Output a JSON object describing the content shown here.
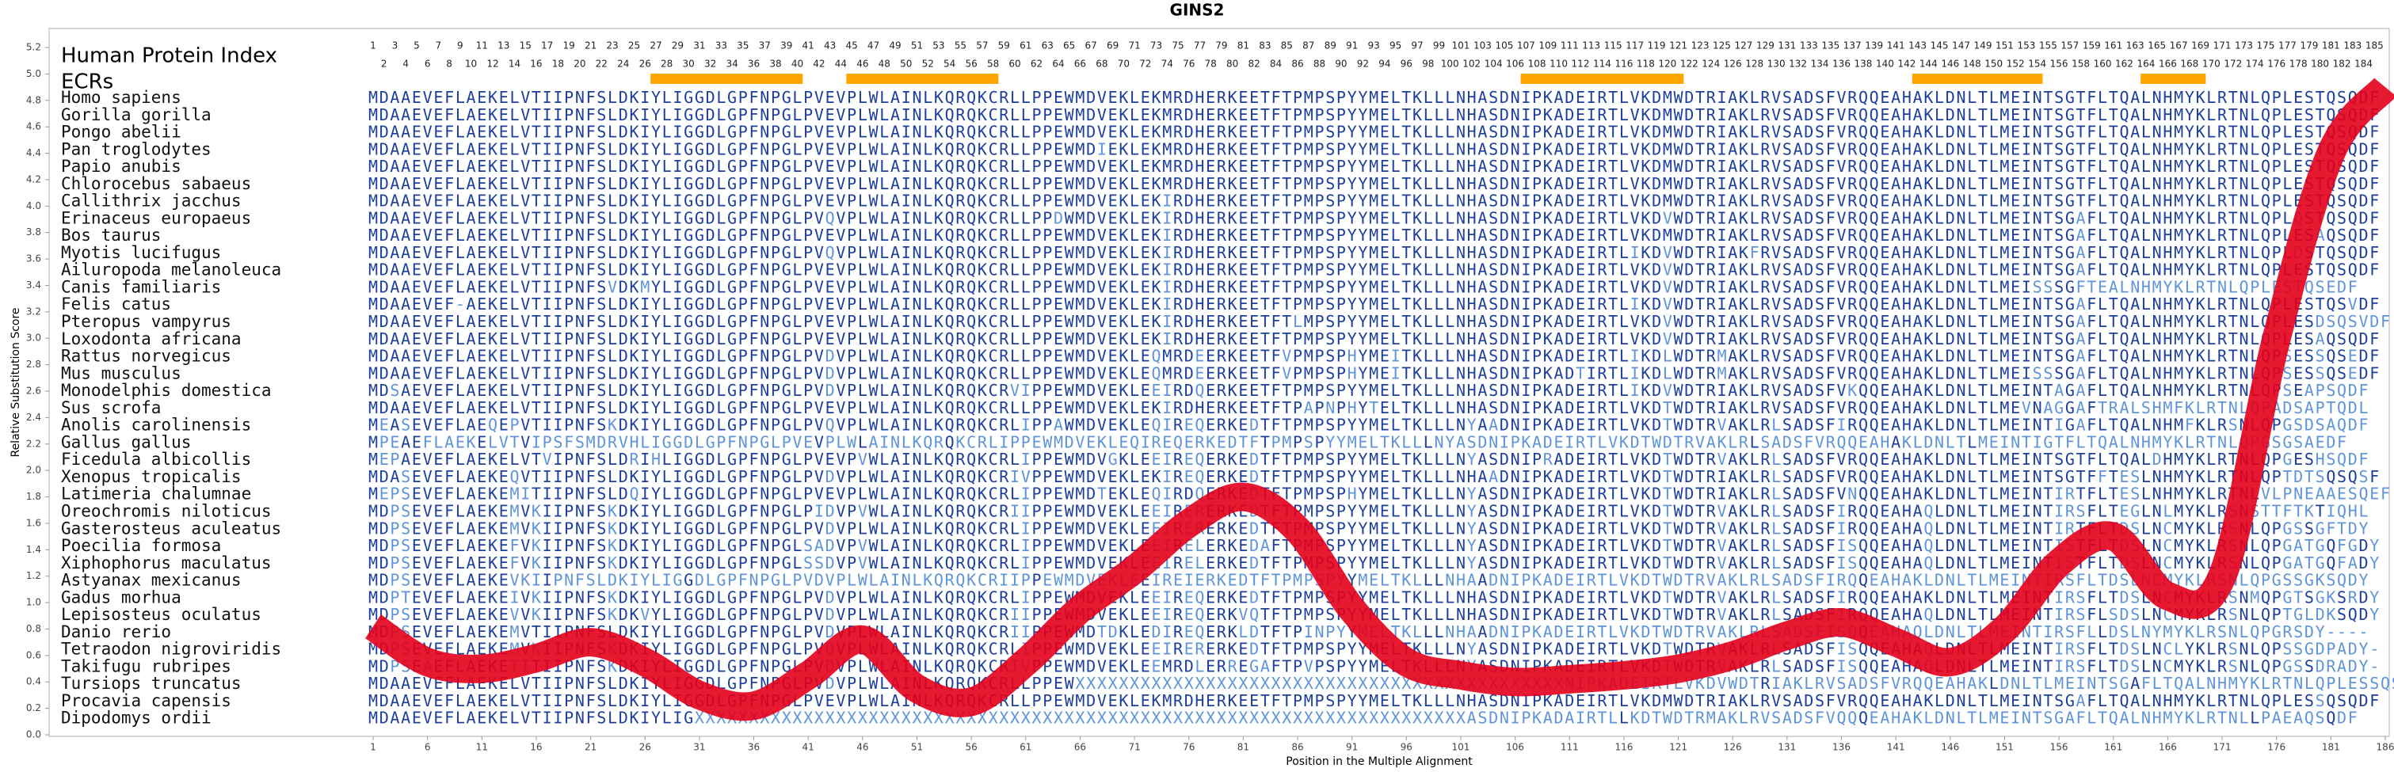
{
  "chart_data": {
    "type": "line",
    "title": "GINS2",
    "y_label": "Relative Substitution Score",
    "x_label": "Position in the Multiple Alignment",
    "x": [
      1,
      6,
      11,
      16,
      21,
      26,
      31,
      36,
      41,
      46,
      51,
      56,
      61,
      66,
      71,
      76,
      81,
      86,
      91,
      96,
      101,
      106,
      111,
      116,
      121,
      126,
      131,
      136,
      141,
      146,
      151,
      156,
      161,
      166,
      171,
      176,
      181,
      186
    ],
    "values": [
      0.82,
      0.55,
      0.5,
      0.58,
      0.7,
      0.55,
      0.3,
      0.22,
      0.45,
      0.72,
      0.35,
      0.25,
      0.55,
      0.95,
      1.25,
      1.6,
      1.8,
      1.55,
      0.95,
      0.55,
      0.45,
      0.4,
      0.42,
      0.45,
      0.5,
      0.6,
      0.75,
      0.85,
      0.7,
      0.55,
      0.8,
      1.3,
      1.5,
      1.05,
      1.2,
      3.0,
      4.4,
      4.9
    ],
    "color": "#e3001b",
    "xlim": [
      1,
      186
    ],
    "xticks": [
      1,
      6,
      11,
      16,
      21,
      26,
      31,
      36,
      41,
      46,
      51,
      56,
      61,
      66,
      71,
      76,
      81,
      86,
      91,
      96,
      101,
      106,
      111,
      116,
      121,
      126,
      131,
      136,
      141,
      146,
      151,
      156,
      161,
      166,
      171,
      176,
      181,
      186
    ],
    "ylim": [
      0,
      5.2
    ],
    "yticks": [
      {
        "value": 0,
        "label": "0.0"
      },
      0.2,
      0.4,
      0.6,
      0.8,
      {
        "value": 1,
        "label": "1.0"
      },
      1.2,
      1.4,
      1.6,
      1.8,
      {
        "value": 2,
        "label": "2.0"
      },
      2.2,
      2.4,
      2.6,
      2.8,
      {
        "value": 3,
        "label": "3.0"
      },
      3.2,
      3.4,
      3.6,
      3.8,
      {
        "value": 4,
        "label": "4.0"
      },
      4.2,
      4.4,
      4.6,
      4.8,
      {
        "value": 5,
        "label": "5.0"
      },
      5.2
    ],
    "grid": false,
    "index_label": "Human Protein Index",
    "ecr_label": "ECRs",
    "ecr_color": "#ffa500",
    "ecrs": [
      [
        27,
        40
      ],
      [
        45,
        58
      ],
      [
        107,
        121
      ],
      [
        143,
        154
      ],
      [
        164,
        169
      ]
    ],
    "conserved_color": "#1d3f9c",
    "variable_color": "#5f95d8",
    "index_positions": [
      1,
      2,
      3,
      4,
      5,
      6,
      7,
      8,
      9,
      10,
      11,
      12,
      13,
      14,
      15,
      16,
      17,
      18,
      19,
      20,
      21,
      22,
      23,
      24,
      25,
      26,
      27,
      28,
      29,
      30,
      31,
      32,
      33,
      34,
      35,
      36,
      37,
      38,
      39,
      40,
      41,
      42,
      43,
      44,
      45,
      46,
      47,
      48,
      49,
      50,
      51,
      52,
      53,
      54,
      55,
      56,
      57,
      58,
      59,
      60,
      61,
      62,
      63,
      64,
      65,
      66,
      67,
      68,
      69,
      70,
      71,
      72,
      73,
      74,
      75,
      76,
      77,
      78,
      79,
      80,
      81,
      82,
      83,
      84,
      85,
      86,
      87,
      88,
      89,
      90,
      91,
      92,
      93,
      94,
      95,
      96,
      97,
      98,
      99,
      100,
      101,
      102,
      103,
      104,
      105,
      106,
      107,
      108,
      109,
      110,
      111,
      112,
      113,
      114,
      115,
      116,
      117,
      118,
      119,
      120,
      121,
      122,
      123,
      124,
      125,
      126,
      127,
      128,
      129,
      130,
      131,
      132,
      133,
      134,
      135,
      136,
      137,
      138,
      139,
      140,
      141,
      142,
      143,
      144,
      145,
      146,
      147,
      148,
      149,
      150,
      151,
      152,
      153,
      154,
      155,
      156,
      157,
      158,
      159,
      160,
      161,
      162,
      163,
      164,
      165,
      166,
      167,
      168,
      169,
      170,
      171,
      172,
      173,
      174,
      175,
      176,
      177,
      178,
      179,
      180,
      181,
      182,
      183,
      184,
      185
    ],
    "species": [
      "Homo sapiens",
      "Gorilla gorilla",
      "Pongo abelii",
      "Pan troglodytes",
      "Papio anubis",
      "Chlorocebus sabaeus",
      "Callithrix jacchus",
      "Erinaceus europaeus",
      "Bos taurus",
      "Myotis lucifugus",
      "Ailuropoda melanoleuca",
      "Canis familiaris",
      "Felis catus",
      "Pteropus vampyrus",
      "Loxodonta africana",
      "Rattus norvegicus",
      "Mus musculus",
      "Monodelphis domestica",
      "Sus scrofa",
      "Anolis carolinensis",
      "Gallus gallus",
      "Ficedula albicollis",
      "Xenopus tropicalis",
      "Latimeria chalumnae",
      "Oreochromis niloticus",
      "Gasterosteus aculeatus",
      "Poecilia formosa",
      "Xiphophorus maculatus",
      "Astyanax mexicanus",
      "Gadus morhua",
      "Lepisosteus oculatus",
      "Danio rerio",
      "Tetraodon nigroviridis",
      "Takifugu rubripes",
      "Tursiops truncatus",
      "Procavia capensis",
      "Dipodomys ordii"
    ],
    "sequences": [
      "MDAAEVEFLAEKELVTIIPNFSLDKIYLIGGDLGPFNPGLPVEVPLWLAINLKQRQKCRLLPPEWMDVEKLEKMRDHERKEETFTPMPSPYYMELTKLLLNHASDNIPKADEIRTLVKDMWDTRIAKLRVSADSFVRQQEAHAKLDNLTLMEINTSGTFLTQALNHMYKLRTNLQPLESTQSQDF",
      "MDAAEVEFLAEKELVTIIPNFSLDKIYLIGGDLGPFNPGLPVEVPLWLAINLKQRQKCRLLPPEWMDVEKLEKMRDHERKEETFTPMPSPYYMELTKLLLNHASDNIPKADEIRTLVKDMWDTRIAKLRVSADSFVRQQEAHAKLDNLTLMEINTSGTFLTQALNHMYKLRTNLQPLESTQSQDF",
      "MDAAEVEFLAEKELVTIIPNFSLDKIYLIGGDLGPFNPGLPVEVPLWLAINLKQRQKCRLLPPEWMDVEKLEKMRDHERKEETFTPMPSPYYMELTKLLLNHASDNIPKADEIRTLVKDMWDTRIAKLRVSADSFVRQQEAHAKLDNLTLMEINTSGTFLTQALNHMYKLRTNLQPLESTQSQDF",
      "MDAAEVEFLAEKELVTIIPNFSLDKIYLIGGDLGPFNPGLPVEVPLWLAINLKQRQKCRLLPPEWMDIEKLEKMRDHERKEETFTPMPSPYYMELTKLLLNHASDNIPKADEIRTLVKDMWDTRIAKLRVSADSFVRQQEAHAKLDNLTLMEINTSGTFLTQALNHMYKLRTNLQPLESTQSQDF",
      "MDAAEVEFLAEKELVTIIPNFSLDKIYLIGGDLGPFNPGLPVEVPLWLAINLKQRQKCRLLPPEWMDVEKLEKMRDHERKEETFTPMPSPYYMELTKLLLNHASDNIPKADEIRTLVKDMWDTRIAKLRVSADSFVRQQEAHAKLDNLTLMEINTSGTFLTQALNHMYKLRTNLQPLESTQSQDF",
      "MDAAEVEFLAEKELVTIIPNFSLDKIYLIGGDLGPFNPGLPVEVPLWLAINLKQRQKCRLLPPEWMDVEKLEKMRDHERKEETFTPMPSPYYMELTKLLLNHASDNIPKADEIRTLVKDMWDTRIAKLRVSADSFVRQQEAHAKLDNLTLMEINTSGTFLTQALNHMYKLRTNLQPLESTQSQDF",
      "MDAAEVEFLAEKELVTIIPNFSLDKIYLIGGDLGPFNPGLPVEVPLWLAINLKQRQKCRLLPPEWMDVEKLEKIRDHERKEETFTPMPSPYYMELTKLLLNHASDNIPKADEIRTLVKDMWDTRIAKLRVSADSFVRQQEAHAKLDNLTLMEINTSGTFLTQALNHMYKLRTNLQPLESTQSQDF",
      "MDAAEVEFLAEKELVTIIPNFSLDKIYLIGGDLGPFNPGLPVQVPLWLAINLKQRQKCRLLPPDWMDVEKLEKIRDHERKEETFTPMPSPYYMELTKLLLNHASDNIPKADEIRTLVKDVWDTRIAKLRVSADSFVRQQEAHAKLDNLTLMEINTSGAFLTQALNHMYKLRTNLQPLQSTQSQDF",
      "MDAAEVEFLAEKELVTIIPNFSLDKIYLIGGDLGPFNPGLPVEVPLWLAINLKQRQKCRLLPPEWMDVEKLEKIRDHERKEETFTPMPSPYYMELTKLLLNHASDNIPKADEIRTLVKDMWDTRIAKLRVSADSFVRQQEAHAKLDNLTLMEINTSGAFLTQALNHMYKLRTNLQPLESAQSQDF",
      "MDAAEVEFLAEKELVTIIPNFSLDKIYLIGGDLGPFNPGLPVQVPLWLAINLKQRQKCRLLPPEWMDVEKLEKIRDHERKEETFTPMPSPYYMELTKLLLNHASDNIPKADEIRTLIKDVWDTRIAKFRVSADSFVRQQEAHAKLDNLTLMEINTSGAFLTQALNHMYKLRTNLQPLDSTQSQDF",
      "MDAAEVEFLAEKELVTIIPNFSLDKIYLIGGDLGPFNPGLPVEVPLWLAINLKQRQKCRLLPPEWMDVEKLEKIRDHERKEETFTPMPSPYYMELTKLLLNHASDNIPKADEIRTLVKDVWDTRIAKLRVSADSFVRQQEAHAKLDNLTLMEINTSGAFLTQALNHMYKLRTNLQPLESTQSQDF",
      "MDAAEVEFLAEKELVTIIPNFSVDKMYLIGGDLGPFNPGLPVEVPLWLAINLKQRQKCRLLPPEWMDVEKLEKIRDHERKEETFTPMPSPYYMELTKLLLNHASDNIPKADEIRTLVKDVWDTRIAKLRVSADSFVRQQEAHAKLDNLTLMEISSSGFTEALNHMYKLRTNLQPLESTQSEDF",
      "MDAAEVEF-AEKELVTIIPNFSLDKIYLIGGDLGPFNPGLPVEVPLWLAINLKQRQKCRLLPPEWMDVEKLEKIRDHERKEETFTPMPSPYYMELTKLLLNHASDNIPKADEIRTLIKDVWDTRIAKLRVSADSFVRQQEAHAKLDNLTLMEINTSGAFLTQALNHMYKLRTNLQPLESTQSVDF",
      "MDAAEVEFLAEKELVTIIPNFSLDKIYLIGGDLGPFNPGLPVEVPLWLAINLKQRQKCRLLPPEWMDVEKLEKIRDHERKEETFTLMPSPYYMELTKLLLNHASDNIPKADEIRTLVKDVWDTRIAKLRVSADSFVRQQEAHAKLDNLTLMEINTSGAFLTQALNHMYKLRTNLQPLESDSQSVDF",
      "MDAAEVEFLAEKELVTIIPNFSLDKIYLIGGDLGPFNPGLPVEVPLWLAINLKQRQKCRLLPPEWMDVEKLEKIRDHERKEETFTPMPSPYYMELTKLLLNHASDNIPKADEIRTLVKDVWDTRIAKLRVSADSFVRQQEAHAKLDNLTLMEINTSGAFLTQALNHMYKLRTNLQPLESAQSQDF",
      "MDAAEVEFLAEKELVTIIPNFSLDKIYLIGGDLGPFNPGLPVDVPLWLAINLKQRQKCRLLPPEWMDVEKLEQMRDEERKEETFVPMPSPHYMEITKLLLNHASDNIPKADEIRTLIKDLWDTRMAKLRVSADSFVRQQEAHAKLDNLTLMEINTSGAFLTQALNHMYKLRTNLQPSESSQSEDF",
      "MDAAEVEFLAEKELVTIIPNFSLDKIYLIGGDLGPFNPGLPVDVPLWLAINLKQRQKCRLLPPEWMDVEKLEQMRDEERKEETFVPMPSPHYMEITKLLLNHASDNIPKADTIRTLIKDLWDTRMAKLRVSADSFVRQQEAHAKLDNLTLMEISSSGAFLTQALNHMYKLRTNLQPSESSQSEDF",
      "MDSAEVEFLAEKELVTIIPNFSLDKIYLIGGDLGPFNPGLPVDVPLWLAINLKQRQKCRVIPPEWMDVEKLEEIRDQERKEETFTPMPSPYYMELTKLLLNHASDNIPKADEIRTLIKDVWDTRIAKLRVSADSFVKQQEAHAKLDNLTLMEINTAGAFLTQALNHMYKLRTNLQPSEAPSQDF",
      "MDAAEVEFLAEKELVTIIPNFSLDKIYLIGGDLGPFNPGLPVEVPLWLAINLKQRQKCRLLPPEWMDVEKLEKIRDHERKEETFTPAPNPHYTELTKLLLNHASDNIPKADEIRTLVKDTWDTRIAKLRVSADSFVRQQEAHAKLDNLTLMEVNAGGAFTRALSHMFKLRTNLQPADSAPTQDL",
      "MEASEVEFLAEQEPVTIIPNFSKDKIYLIGGDLGPFNPGLPVQVPLWLAINLKQRQKCRLIPPAWMDVEKLEQIREQERKEDTFTPMPSPYYMELTKLLLNYAADNIPKADEIRTLVKDTWDTRVAKLRLSADSFIRQQEAHAKLDNLTLMEINTIGAFLTQALNHMFKLRSNLQPGSDSAQDF",
      "MPEAEFLAEKELVTVIPSFSMDRVHLIGGDLGPFNPGLPVEVPLWLAINLKQRQKCRLIPPEWMDVEKLEQIREQERKEDTFTPMPSPYYMELTKLLLNYASDNIPKADEIRTLVKDTWDTRVAKLRLSADSFVRQQEAHAKLDNLTLMEINTIGTFLTQALNHMYKLRTNLQPGSGSAEDF",
      "MEPAEVEFLAEKELVTVIPNFSLDRIHLIGGDLGPFNPGLPVEVPVWLAINLKQRQKCRLIPPEWMDVGKLEEIREQERKEDTFTPMPSPYYMELTKLLLNYASDNIPRADEIRTLVKDTWDTRVAKLRLSADSFVRQQEAHAKLDNLTLMEINTSGTFLTQALDHMYKLRTNLQPGESHSQDF",
      "MDASEVEFLAEKEQVTIIPNFSLDKIYLIGGDLGPFNPGLPVDVPLWLAINLKQRQKCRIVPPEWMDVEKLEKIREQERKEDTFTPMPSPYYMELTKLLLNHAADNIPKADEIRTLVKDTWDTRIAKLRLSADSFVRQQEAHAKLDNLTLMEINTSGTFFTESLNHMYKLRTNLQPTDTSQSQSF",
      "MEPSEVEFLAEKEMITIIPNFSLDQIYLIGGDLGPFNPGLPVEVPLWLAINLKQRQKCRLIPPEWMDTEKLEQIRDQERKEDTFTPMPSPHYMELTKLLLNYASDNIPKADEIRTLVKDTWDTRIAKLRLSADSFVNQQEAHAKLDNLTLMEINTIRTFLTESLNHMYKLRTNLVLPNEAAESQEF",
      "MDPSEVEFLAEKEMVKIIPNFSKDKIYLIGGDLGPFNPGLPIDVPVWLAINLKQRQKCRIIPPEWMDVEKLEEIRERERKEDTFTPMPSPYYMELTKLLLNYASDNIPKADEIRTLVKDTWDTRVAKLRLSADSFIRQQEAHAQLDNLTLMEINTIRSFLTEGLNLMYKLRSNSTTFTKTIQHL",
      "MDPSEVEFLAEKEMVKIIPNFSKDKIYLIGGDLGPFNPGLPVDVPLWLAINLKQRQKCRLIPPEWMDVEKLEEIRERERKEDTFTPMPSPYYMELTKLLLNYASDNIPKADEIRTLVKDTWDTRVAKLRLSADSFIRQQEAHAQLDNLTLMEINTIRTFLTDSLNCMYKLRSNLQPGSSGFTDY",
      "MDPSEVEFLAEKEFVKIIPNFSKDKIYLIGGDLGPFNPGLSADVPVWLAINLKQRQKCRLIPPEWMDVEKLEEIRELERKEDAFTPMPSPYYMELTKLLLNYASDNIPKADEIRTLVKDTWDTRVAKLRLSADSFISQQEAHAQLDNLTLMEINTISTFLTDSLNCMYKLRSNLQPGATGQFGDY",
      "MDPSEVEFLAEKEFVKIIPNFSKDKIYLIGGDLGPFNPGLSSDVPVWLAINLKQRQKCRLIPPEWMDVEKLEEIRELERKEDTFTPMPSPYYMELTKLLLNYASDNIPKADEIRTLVKDTWDTRVAKLRLSADSFISQQEAHAQLDNLTLMEINTISTFLTDSLNCMYKLRSNLQPGATGQFADY",
      "MDPSEVEFLAEKEVKIIPNFSLDKIYLIGGDLGPFNPGLPVDVPLWLAINLKQRQKCRIIPPEWMDVEKLEEIREIERKEDTFTPMPSPYYMELTKLLLNHAADNIPKADEIRTLVKDTWDTRVAKLRLSADSFIRQQEAHAKLDNLTLMEINTIRSFLTDSLNCMYKLRSNLQPGSSGKSQDY",
      "MDPTEVEFLAEKEIVKIIPNFSKDKIYLIGGDLGPFNPGLPVDVPLWLAINLKQRQKCRLIPPEWMDVEKLEEIREQERKEDTFTPMPSPYYMELTKLLLNHASDNIPKADEIRTLVKDTWDTRVAKLRLSADSFIRQQEAHAKLDNLTLMEINTIRSFLTDSLNCMYKLRSNMQPGTSGKSRDY",
      "MDPSEVEFLAEKEVVKIIPNFSKDKVYLIGGDLGPFNPGLPVDVPLWLAINLKQRQKCRIIPPEWMDVEKLEEIREQERKVQTFTPMPSPYYMELTKLLLNHASDNIPKADEIRTLVKDTWDTRVAKLRLSADSFIRQQEAHAQLDNLTLMEINTIRSFLSDSLNCMYKLRSNLQPTGLDKSQDY",
      "MDPSEVEFLAEKEMVTIIPNFSLDKIYLIGGDLGPFNPGLPVDVPLWLAINLKQRQKCRIIPPEWMDTDKLEDIREQERKLDTFTPINPYYMELTKLLLNHAADNIPKADEIRTLVKDTWDTRVAKLRLSADSFISQQEAHAQLDNLTLMEINTIRSFLLDSLNYMYKLRSNLQPGRSDY----",
      "MDPSEVEFLAEKEMVKIIPNFSKDKIYLIGGDLGPFNPGLPVDVPLWLAINLKQRQKCRLIPPEWMDVEKLEEIRERERKEDTFTPMPSPYYMELTKLLLNYASDNIPKADEIRTLVKDTWDTRVAKLRLSADSFISQQEAHAQLDNLTLMEINTIRSFLTDSLNCLYKLRSNLQPSSGDPADY-",
      "MDPSEAEFLAEKETITIIPNFSKDKIYLIGGDLGPFNPGLPVDVPLWLAINLKQRQKCRIVPPEWMDVEKLEEMRDLERREGAFTPVPSPYYMELTKLLLNYASDNIPKADEIRTLVKDTWDTRVAKLRLSADSFISQQEAHAQLDNLTLMEINTIRSFLTDSLNCMYKLRSNLQPGSSDRADY-",
      "MDAAEVEFLAEKELVTIIPNFSLDKIYLIGGDLGPFNPGLPVDVPLWLAINLKQRQKCRLLPPEWXXXXXXXXXXXXXXXXXXXXXXXXXXXXXXXXXXXXXXXXXXXXXNIPKADEIRTLVKDVWDTRIAKLRVSADSFVRQQEAHAKLDNLTLMEINTSGAFLTQALNHMYKLRTNLQPLESSQSQDL",
      "MDAAEVEFLAEKELVTIIPNFSLDKIYLIGGDLGPFNPGLPVEVPLWLAINLKQRQKCRLLPPEWMDVEKLEKMRDHERKEETFTPMPSPYYMELTKLLLNHASDNIPKADEIRTLVKDMWDTRIAKLRVSADSFVRQQEAHAKLDNLTLMEINTSGAFLTQALNHMYKLRTNLQPLESSQSQDF",
      "MDAAEVEFLAEKELVTIIPNFSLDKIYLIGXXXXXXXXXXXXXXXXXXXXXXXXXXXXXXXXXXXXXXXXXXXXXXXXXXXXXXXXXXXXXXXXXXXXXXXASDNIPKADAIRTLLKDTWDTRMAKLRVSADSFVQQQEAHAKLDNLTLMEINTSGAFLTQALNHMYKLRTNLLPAEAQSQDF"
    ]
  }
}
